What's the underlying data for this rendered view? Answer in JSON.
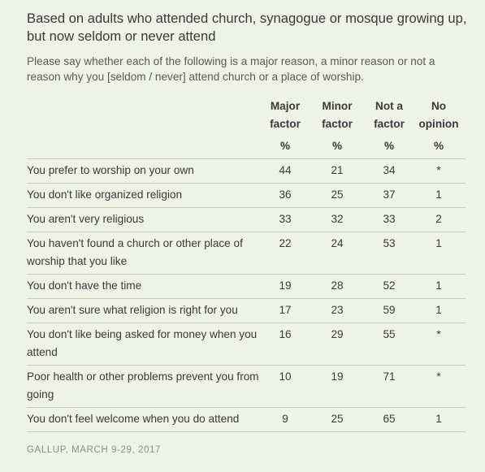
{
  "title": "Based on adults who attended church, synagogue or mosque growing up, but now seldom or never attend",
  "subtitle": "Please say whether each of the following is a major reason, a minor reason or not a reason why you [seldom / never] attend church or a place of worship.",
  "columns": [
    {
      "line1": "Major",
      "line2": "factor",
      "unit": "%"
    },
    {
      "line1": "Minor",
      "line2": "factor",
      "unit": "%"
    },
    {
      "line1": "Not a",
      "line2": "factor",
      "unit": "%"
    },
    {
      "line1": "No",
      "line2": "opinion",
      "unit": "%"
    }
  ],
  "rows": [
    {
      "label": "You prefer to worship on your own",
      "values": [
        "44",
        "21",
        "34",
        "*"
      ]
    },
    {
      "label": "You don't like organized religion",
      "values": [
        "36",
        "25",
        "37",
        "1"
      ]
    },
    {
      "label": "You aren't very religious",
      "values": [
        "33",
        "32",
        "33",
        "2"
      ]
    },
    {
      "label": "You haven't found a church or other place of worship that you like",
      "values": [
        "22",
        "24",
        "53",
        "1"
      ]
    },
    {
      "label": "You don't have the time",
      "values": [
        "19",
        "28",
        "52",
        "1"
      ]
    },
    {
      "label": "You aren't sure what religion is right for you",
      "values": [
        "17",
        "23",
        "59",
        "1"
      ]
    },
    {
      "label": "You don't like being asked for money when you attend",
      "values": [
        "16",
        "29",
        "55",
        "*"
      ]
    },
    {
      "label": "Poor health or other problems prevent you from going",
      "values": [
        "10",
        "19",
        "71",
        "*"
      ]
    },
    {
      "label": "You don't feel welcome when you do attend",
      "values": [
        "9",
        "25",
        "65",
        "1"
      ]
    }
  ],
  "source": "GALLUP, MARCH 9-29, 2017"
}
